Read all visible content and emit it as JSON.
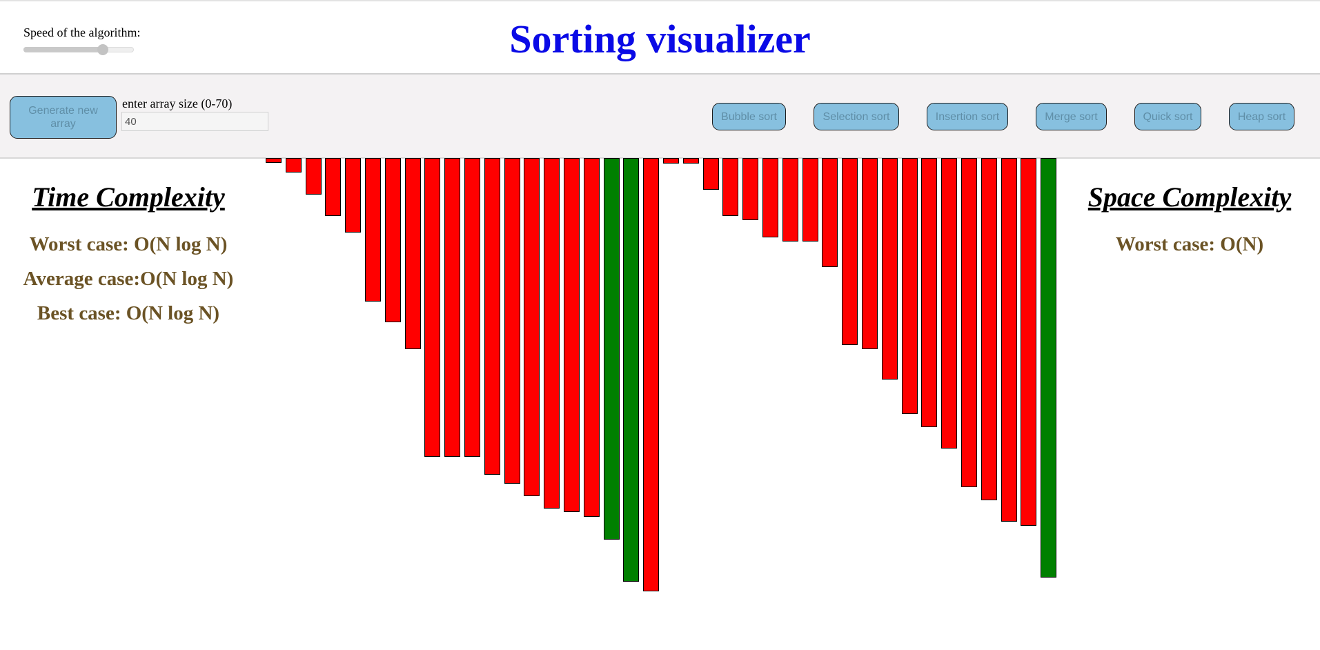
{
  "header": {
    "speed_label": "Speed of the algorithm:",
    "speed_value": 0.72,
    "title": "Sorting visualizer"
  },
  "toolbar": {
    "generate_label": "Generate new array",
    "size_label": "enter array size (0-70)",
    "size_value": "40",
    "sorts": [
      "Bubble sort",
      "Selection sort",
      "Insertion sort",
      "Merge sort",
      "Quick sort",
      "Heap sort"
    ]
  },
  "time_complexity": {
    "heading": "Time Complexity",
    "worst": "Worst case: O(N log N)",
    "average": "Average case:O(N log N)",
    "best": "Best case: O(N log N)"
  },
  "space_complexity": {
    "heading": "Space Complexity",
    "worst": "Worst case: O(N)"
  },
  "colors": {
    "bar_default": "#ff0000",
    "bar_sorted": "#008000",
    "title": "#0a0ae6",
    "case_text": "#6b5325",
    "button": "#87c0df"
  },
  "array": {
    "values": [
      7,
      21,
      53,
      84,
      108,
      208,
      238,
      277,
      433,
      433,
      433,
      459,
      472,
      490,
      508,
      513,
      520,
      553,
      614,
      628,
      8,
      8,
      46,
      84,
      90,
      115,
      121,
      121,
      158,
      271,
      277,
      321,
      371,
      390,
      421,
      477,
      496,
      527,
      533,
      608
    ],
    "states": [
      "d",
      "d",
      "d",
      "d",
      "d",
      "d",
      "d",
      "d",
      "d",
      "d",
      "d",
      "d",
      "d",
      "d",
      "d",
      "d",
      "d",
      "s",
      "s",
      "d",
      "d",
      "d",
      "d",
      "d",
      "d",
      "d",
      "d",
      "d",
      "d",
      "d",
      "d",
      "d",
      "d",
      "d",
      "d",
      "d",
      "d",
      "d",
      "d",
      "s"
    ]
  }
}
